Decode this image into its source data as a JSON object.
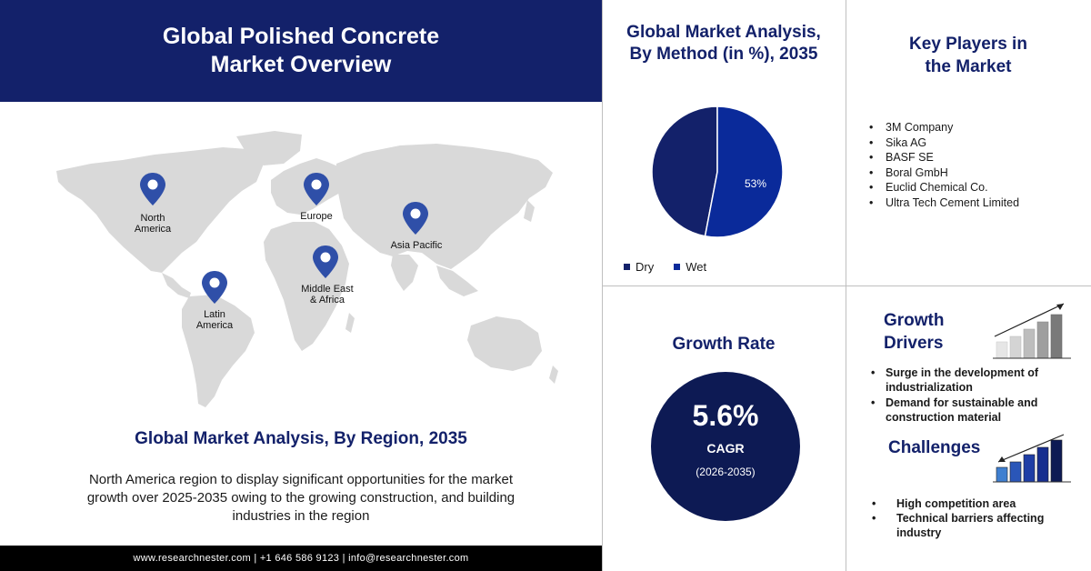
{
  "header": {
    "title": "Global Polished Concrete Market Overview"
  },
  "map": {
    "regions": [
      {
        "label_line1": "North",
        "label_line2": "America"
      },
      {
        "label_line1": "Europe",
        "label_line2": ""
      },
      {
        "label_line1": "Asia Pacific",
        "label_line2": ""
      },
      {
        "label_line1": "Middle East",
        "label_line2": "& Africa"
      },
      {
        "label_line1": "Latin",
        "label_line2": "America"
      }
    ],
    "pin_color": "#2f4fa8",
    "land_color": "#d9d9d9"
  },
  "region_section": {
    "title": "Global Market Analysis, By Region, 2035",
    "description": "North America region to display significant opportunities for the market growth over 2025-2035 owing to the growing construction, and building industries in the region"
  },
  "footer": {
    "text": "www.researchnester.com | +1 646 586 9123 | info@researchnester.com"
  },
  "method_section": {
    "title_line1": "Global Market Analysis,",
    "title_line2": "By Method (in %), 2035",
    "slice_label": "53%"
  },
  "chart_data": {
    "type": "pie",
    "title": "Global Market Analysis, By Method (in %), 2035",
    "slices": [
      {
        "name": "Dry",
        "value": 47,
        "color": "#13216a"
      },
      {
        "name": "Wet",
        "value": 53,
        "color": "#0a2a9a"
      }
    ],
    "legend_position": "bottom-left"
  },
  "key_players": {
    "title_line1": "Key Players in",
    "title_line2": "the Market",
    "items": [
      "3M Company",
      "Sika AG",
      "BASF SE",
      "Boral GmbH",
      "Euclid Chemical Co.",
      "Ultra Tech Cement Limited"
    ]
  },
  "growth_rate": {
    "title": "Growth Rate",
    "value": "5.6%",
    "metric": "CAGR",
    "period": "(2026-2035)",
    "circle_color": "#0d1a54"
  },
  "growth_drivers": {
    "title_line1": "Growth",
    "title_line2": "Drivers",
    "items": [
      "Surge in the development of industrialization",
      "Demand for sustainable and construction material"
    ]
  },
  "challenges": {
    "title": "Challenges",
    "items": [
      "High competition area",
      "Technical barriers affecting industry"
    ]
  }
}
